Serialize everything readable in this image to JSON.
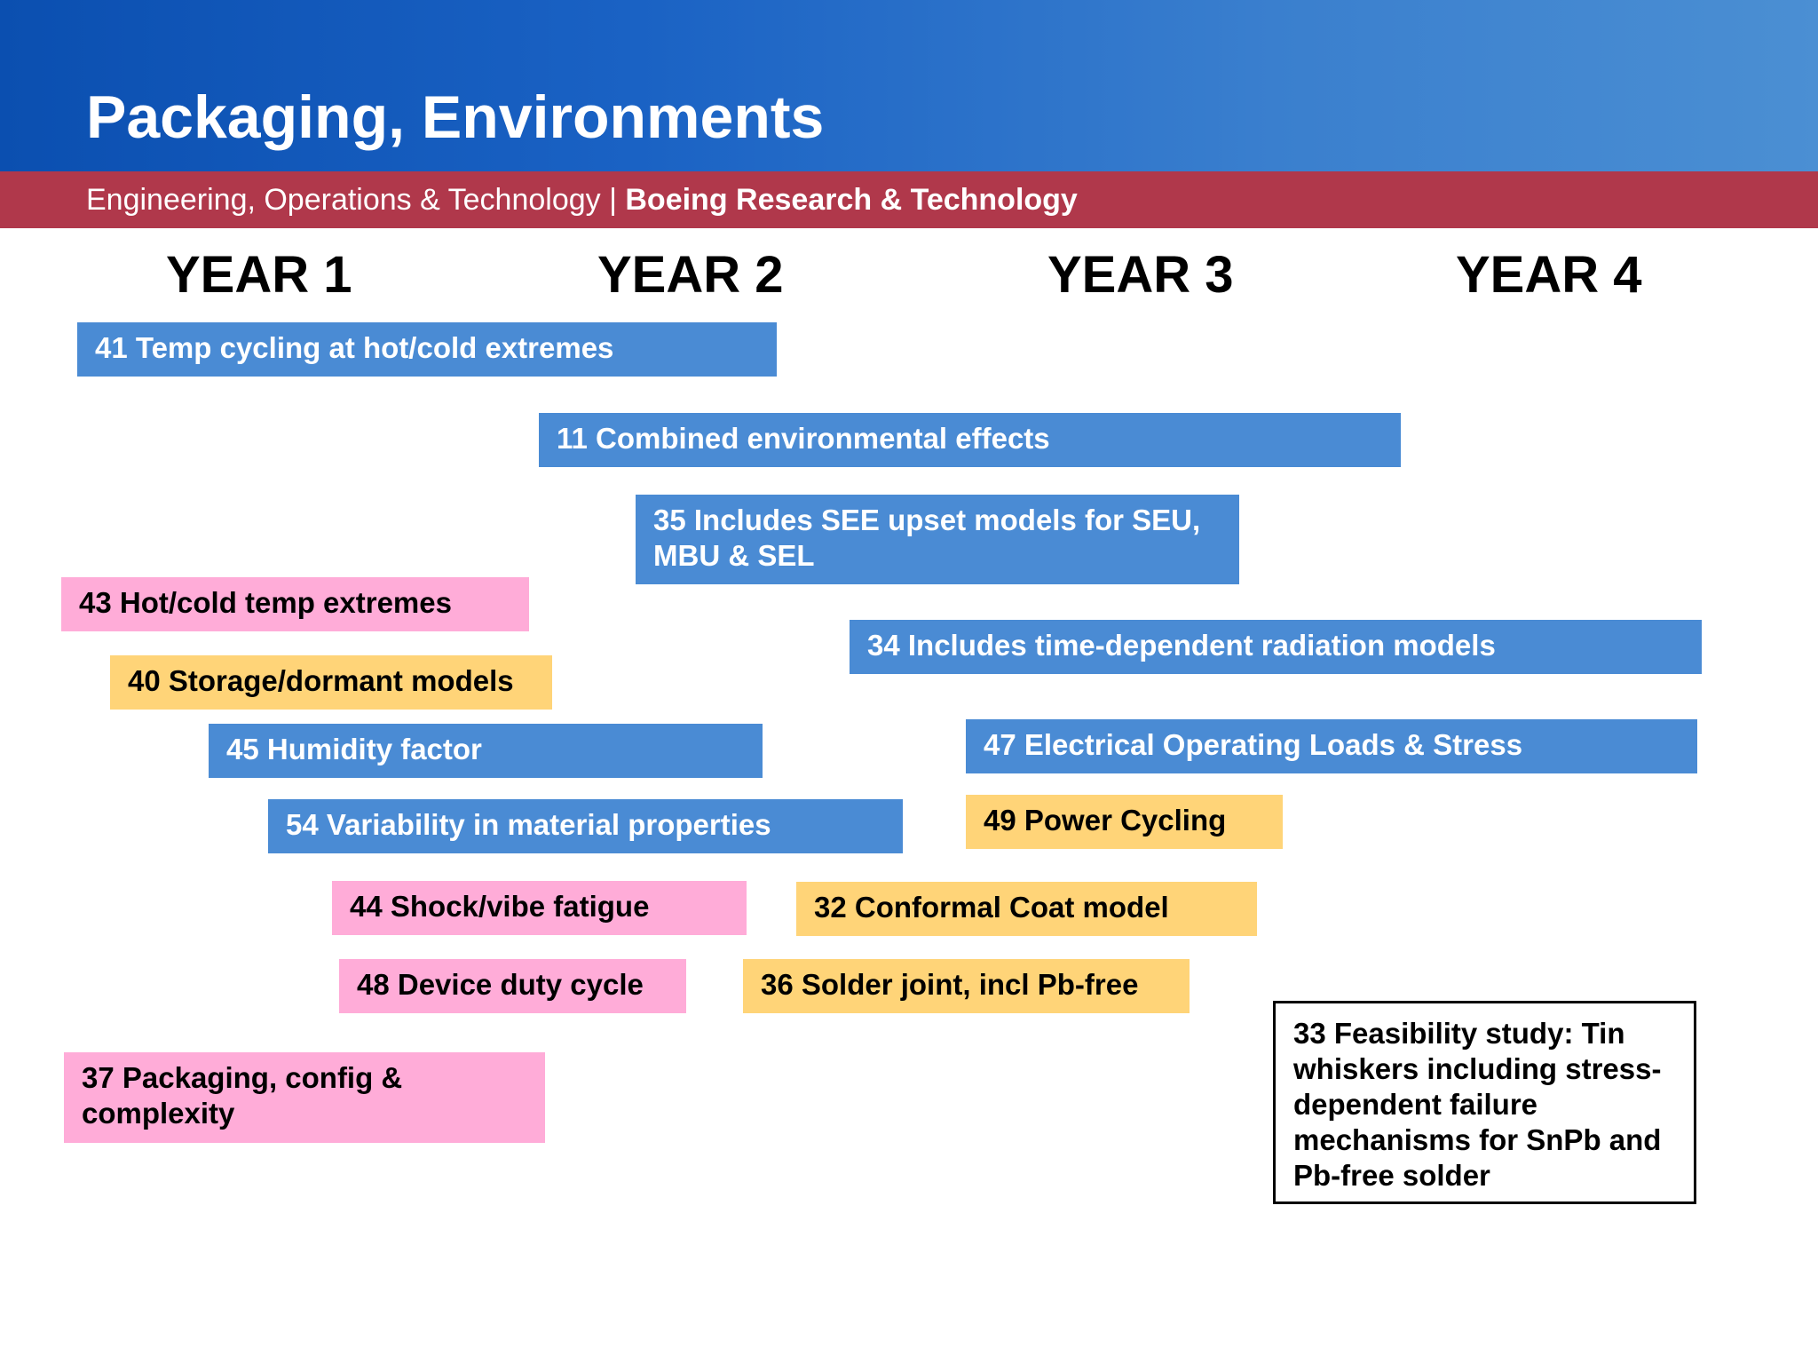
{
  "header": {
    "title": "Packaging, Environments",
    "subtitle_left": "Engineering, Operations & Technology | ",
    "subtitle_right": "Boeing Research & Technology"
  },
  "years": [
    "YEAR 1",
    "YEAR 2",
    "YEAR 3",
    "YEAR 4"
  ],
  "colors": {
    "blue": "#4a8bd4",
    "pink": "#ffacd8",
    "yellow": "#ffd478",
    "header_blue": "#1a62c4",
    "header_red": "#b0384b"
  },
  "tasks": [
    {
      "label": "41 Temp cycling at hot/cold extremes",
      "color": "blue"
    },
    {
      "label": "11 Combined environmental effects",
      "color": "blue"
    },
    {
      "label": "35 Includes SEE upset models for SEU, MBU & SEL",
      "color": "blue"
    },
    {
      "label": "43 Hot/cold temp extremes",
      "color": "pink"
    },
    {
      "label": "34 Includes time-dependent radiation models",
      "color": "blue"
    },
    {
      "label": "40 Storage/dormant models",
      "color": "yellow"
    },
    {
      "label": "45 Humidity factor",
      "color": "blue"
    },
    {
      "label": "47 Electrical Operating Loads & Stress",
      "color": "blue"
    },
    {
      "label": "54 Variability in material properties",
      "color": "blue"
    },
    {
      "label": "49 Power Cycling",
      "color": "yellow"
    },
    {
      "label": "44 Shock/vibe fatigue",
      "color": "pink"
    },
    {
      "label": "32 Conformal Coat model",
      "color": "yellow"
    },
    {
      "label": "48 Device duty cycle",
      "color": "pink"
    },
    {
      "label": "36 Solder joint, incl Pb-free",
      "color": "yellow"
    },
    {
      "label": "37 Packaging, config & complexity",
      "color": "pink"
    },
    {
      "label": "33 Feasibility study: Tin whiskers including stress-dependent failure mechanisms for SnPb and Pb-free solder",
      "color": "outline"
    }
  ]
}
